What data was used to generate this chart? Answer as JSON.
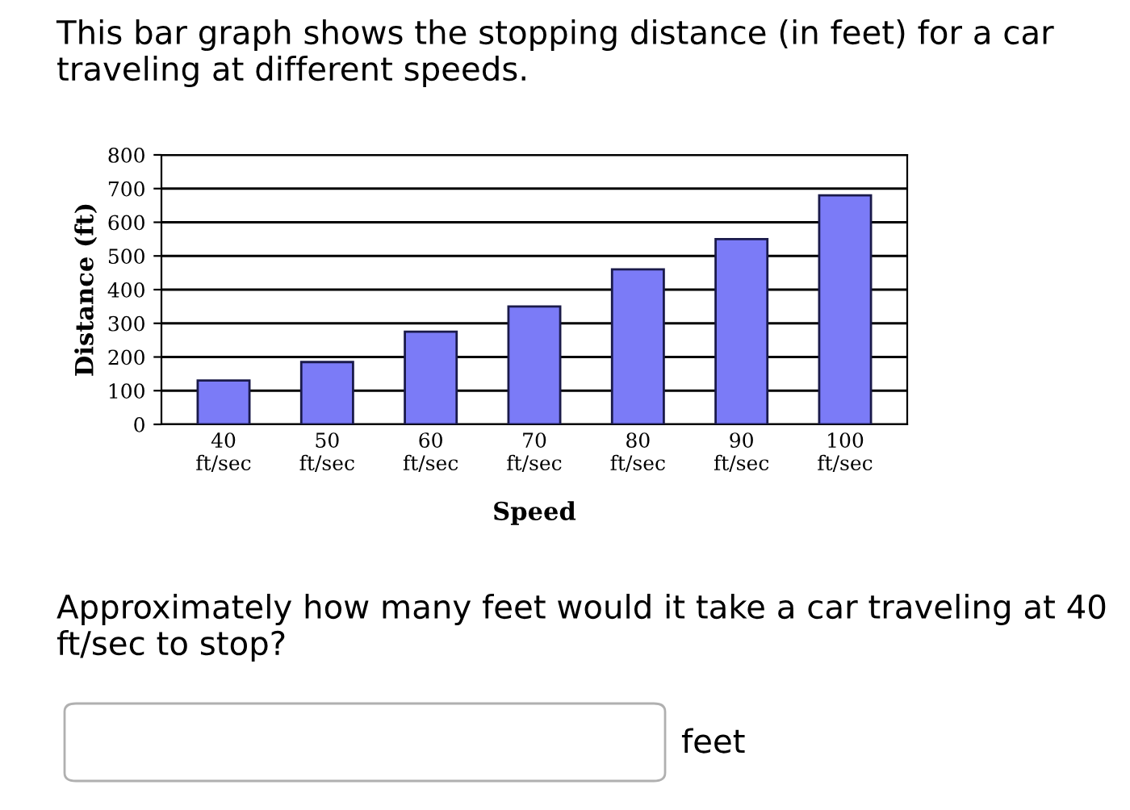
{
  "chart_data": {
    "type": "bar",
    "title": "This bar graph shows the stopping distance (in feet) for a car traveling at different speeds.",
    "categories": [
      "40\nft/sec",
      "50\nft/sec",
      "60\nft/sec",
      "70\nft/sec",
      "80\nft/sec",
      "90\nft/sec",
      "100\nft/sec"
    ],
    "values": [
      130,
      185,
      275,
      350,
      460,
      550,
      680
    ],
    "color": "#7b7bf7",
    "xlabel": "Speed",
    "ylabel": "Distance (ft)",
    "ylim": [
      0,
      800
    ],
    "yticks": [
      0,
      100,
      200,
      300,
      400,
      500,
      600,
      700,
      800
    ],
    "grid": "y",
    "annotations": [
      "Approximately how many feet would it take a car traveling at 40 ft/sec to stop?",
      "feet"
    ]
  }
}
